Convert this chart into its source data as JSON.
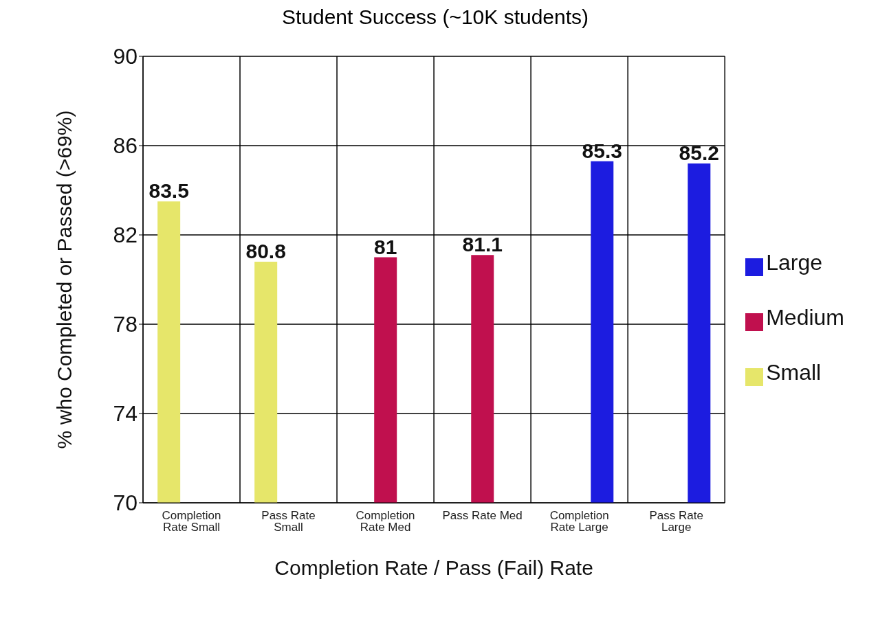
{
  "chart_data": {
    "type": "bar",
    "title": "Student Success (~10K students)",
    "xlabel": "Completion Rate / Pass (Fail) Rate",
    "ylabel": "% who Completed or Passed (>69%)",
    "categories": [
      "Completion Rate Small",
      "Pass Rate Small",
      "Completion Rate Med",
      "Pass Rate Med",
      "Completion Rate Large",
      "Pass Rate Large"
    ],
    "series": [
      {
        "name": "Small",
        "color": "#e6e66a",
        "values": [
          83.5,
          80.8,
          null,
          null,
          null,
          null
        ]
      },
      {
        "name": "Medium",
        "color": "#c0104e",
        "values": [
          null,
          null,
          81,
          81.1,
          null,
          null
        ]
      },
      {
        "name": "Large",
        "color": "#1c1ce0",
        "values": [
          null,
          null,
          null,
          null,
          85.3,
          85.2
        ]
      }
    ],
    "ylim": [
      70,
      90
    ],
    "yticks": [
      70,
      74,
      78,
      82,
      86,
      90
    ],
    "grid": true,
    "legend": "right",
    "data_labels": true
  }
}
